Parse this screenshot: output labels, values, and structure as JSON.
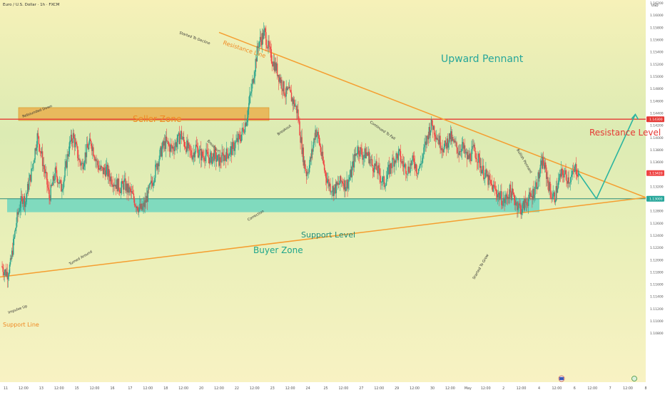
{
  "header": {
    "symbol_title": "Euro / U.S. Dollar · 1h · FXCM",
    "currency": "USD",
    "flag_icon": "eu-us-flag-icon"
  },
  "colors": {
    "bg_top": "#f7f0b7",
    "bg_bottom": "#f7f2c1",
    "bg_mid": "#dcecb6",
    "candle_up": "#2ca58d",
    "candle_down": "#ef4444",
    "trend_line": "#f59e30",
    "resistance_level": "#e53935",
    "seller_zone": "#e9b04d",
    "buyer_zone": "#6fd6bf",
    "pennant_text": "#26a69a",
    "projection": "#2cb5a0"
  },
  "chart_data": {
    "type": "candlestick",
    "title": "Upward Pennant",
    "price_axis": {
      "range": [
        1.1,
        1.1625
      ],
      "tick_labels": [
        "1.16200",
        "1.16000",
        "1.15800",
        "1.15600",
        "1.15400",
        "1.15200",
        "1.15000",
        "1.14800",
        "1.14600",
        "1.14400",
        "1.14200",
        "1.14000",
        "1.13800",
        "1.13600",
        "1.13400",
        "1.13200",
        "1.13000",
        "1.12800",
        "1.12600",
        "1.12400",
        "1.12200",
        "1.12000",
        "1.11800",
        "1.11600",
        "1.11400",
        "1.11200",
        "1.11000",
        "1.10800"
      ],
      "markers": [
        {
          "label": "1.14300",
          "value": 1.143,
          "color": "#e53935"
        },
        {
          "label": "1.13420",
          "value": 1.1342,
          "color": "#ef4444"
        },
        {
          "label": "1.13000",
          "value": 1.13,
          "color": "#26a69a"
        }
      ]
    },
    "time_axis": {
      "tick_labels": [
        "11",
        "12:00",
        "13",
        "12:00",
        "15",
        "12:00",
        "16",
        "17",
        "12:00",
        "18",
        "12:00",
        "20",
        "12:00",
        "22",
        "12:00",
        "23",
        "12:00",
        "24",
        "25",
        "12:00",
        "27",
        "12:00",
        "29",
        "12:00",
        "30",
        "12:00",
        "May",
        "12:00",
        "2",
        "12:00",
        "4",
        "12:00",
        "6",
        "12:00",
        "7",
        "12:00",
        "8"
      ]
    },
    "levels": {
      "resistance_level": {
        "label": "Resistance Level",
        "value": 1.143
      },
      "support_level": {
        "label": "Support Level",
        "value": 1.13
      },
      "seller_zone": {
        "label": "Seller Zone",
        "low": 1.1428,
        "high": 1.1449
      },
      "buyer_zone": {
        "label": "Buyer Zone",
        "low": 1.1278,
        "high": 1.13
      }
    },
    "trend_lines": {
      "resistance_line": {
        "label": "Resistance Line",
        "from": 1.1572,
        "to": 1.1302
      },
      "support_line": {
        "label": "Support Line",
        "from": 1.1172,
        "to": 1.1302
      }
    },
    "price_path": [
      [
        0,
        1.119
      ],
      [
        1,
        1.1182
      ],
      [
        2,
        1.1178
      ],
      [
        3,
        1.1192
      ],
      [
        4,
        1.1226
      ],
      [
        5,
        1.1262
      ],
      [
        6,
        1.1286
      ],
      [
        7,
        1.1302
      ],
      [
        8,
        1.1296
      ],
      [
        9,
        1.1322
      ],
      [
        10,
        1.1342
      ],
      [
        11,
        1.1372
      ],
      [
        12,
        1.1402
      ],
      [
        13,
        1.1382
      ],
      [
        14,
        1.1355
      ],
      [
        15,
        1.1332
      ],
      [
        16,
        1.1302
      ],
      [
        17,
        1.1322
      ],
      [
        18,
        1.1342
      ],
      [
        19,
        1.1332
      ],
      [
        20,
        1.1318
      ],
      [
        21,
        1.1335
      ],
      [
        22,
        1.1368
      ],
      [
        23,
        1.1392
      ],
      [
        24,
        1.1402
      ],
      [
        25,
        1.1382
      ],
      [
        26,
        1.1362
      ],
      [
        27,
        1.1355
      ],
      [
        28,
        1.1372
      ],
      [
        29,
        1.1385
      ],
      [
        30,
        1.1392
      ],
      [
        31,
        1.1375
      ],
      [
        32,
        1.1358
      ],
      [
        33,
        1.1348
      ],
      [
        34,
        1.1345
      ],
      [
        35,
        1.1348
      ],
      [
        36,
        1.1337
      ],
      [
        37,
        1.1332
      ],
      [
        38,
        1.1325
      ],
      [
        39,
        1.1322
      ],
      [
        40,
        1.1317
      ],
      [
        41,
        1.1325
      ],
      [
        42,
        1.1316
      ],
      [
        43,
        1.1312
      ],
      [
        44,
        1.1302
      ],
      [
        45,
        1.1292
      ],
      [
        46,
        1.1285
      ],
      [
        47,
        1.1282
      ],
      [
        48,
        1.1292
      ],
      [
        49,
        1.1308
      ],
      [
        50,
        1.1322
      ],
      [
        51,
        1.1338
      ],
      [
        52,
        1.1356
      ],
      [
        53,
        1.1372
      ],
      [
        54,
        1.1385
      ],
      [
        55,
        1.1392
      ],
      [
        56,
        1.1386
      ],
      [
        57,
        1.1382
      ],
      [
        58,
        1.1388
      ],
      [
        59,
        1.1395
      ],
      [
        60,
        1.1405
      ],
      [
        61,
        1.1392
      ],
      [
        62,
        1.1385
      ],
      [
        63,
        1.1376
      ],
      [
        64,
        1.1372
      ],
      [
        65,
        1.1385
      ],
      [
        66,
        1.1376
      ],
      [
        67,
        1.137
      ],
      [
        68,
        1.1372
      ],
      [
        69,
        1.1369
      ],
      [
        70,
        1.1365
      ],
      [
        71,
        1.1372
      ],
      [
        72,
        1.1364
      ],
      [
        73,
        1.1362
      ],
      [
        74,
        1.1368
      ],
      [
        75,
        1.1372
      ],
      [
        76,
        1.1376
      ],
      [
        77,
        1.138
      ],
      [
        78,
        1.1388
      ],
      [
        79,
        1.1395
      ],
      [
        80,
        1.1402
      ],
      [
        81,
        1.1415
      ],
      [
        82,
        1.1432
      ],
      [
        83,
        1.1462
      ],
      [
        84,
        1.149
      ],
      [
        85,
        1.1525
      ],
      [
        86,
        1.1555
      ],
      [
        87,
        1.1562
      ],
      [
        88,
        1.1572
      ],
      [
        89,
        1.1552
      ],
      [
        90,
        1.1535
      ],
      [
        91,
        1.1522
      ],
      [
        92,
        1.1512
      ],
      [
        93,
        1.1498
      ],
      [
        94,
        1.1485
      ],
      [
        95,
        1.1472
      ],
      [
        96,
        1.1475
      ],
      [
        97,
        1.1465
      ],
      [
        98,
        1.1455
      ],
      [
        99,
        1.1442
      ],
      [
        100,
        1.1402
      ],
      [
        101,
        1.1365
      ],
      [
        102,
        1.1342
      ],
      [
        103,
        1.1355
      ],
      [
        104,
        1.138
      ],
      [
        105,
        1.1412
      ],
      [
        106,
        1.14
      ],
      [
        107,
        1.1372
      ],
      [
        108,
        1.1348
      ],
      [
        109,
        1.133
      ],
      [
        110,
        1.132
      ],
      [
        111,
        1.1315
      ],
      [
        112,
        1.1318
      ],
      [
        113,
        1.1325
      ],
      [
        114,
        1.133
      ],
      [
        115,
        1.1322
      ],
      [
        116,
        1.1328
      ],
      [
        117,
        1.1342
      ],
      [
        118,
        1.1365
      ],
      [
        119,
        1.1382
      ],
      [
        120,
        1.1378
      ],
      [
        121,
        1.137
      ],
      [
        122,
        1.1375
      ],
      [
        123,
        1.1368
      ],
      [
        124,
        1.1355
      ],
      [
        125,
        1.1352
      ],
      [
        126,
        1.1345
      ],
      [
        127,
        1.1332
      ],
      [
        128,
        1.1325
      ],
      [
        129,
        1.1338
      ],
      [
        130,
        1.1352
      ],
      [
        131,
        1.1362
      ],
      [
        132,
        1.1368
      ],
      [
        133,
        1.1372
      ],
      [
        134,
        1.1358
      ],
      [
        135,
        1.1352
      ],
      [
        136,
        1.1348
      ],
      [
        137,
        1.1358
      ],
      [
        138,
        1.1362
      ],
      [
        139,
        1.1348
      ],
      [
        140,
        1.1352
      ],
      [
        141,
        1.1372
      ],
      [
        142,
        1.1392
      ],
      [
        143,
        1.1412
      ],
      [
        144,
        1.1422
      ],
      [
        145,
        1.141
      ],
      [
        146,
        1.1398
      ],
      [
        147,
        1.139
      ],
      [
        148,
        1.1382
      ],
      [
        149,
        1.1392
      ],
      [
        150,
        1.1402
      ],
      [
        151,
        1.1392
      ],
      [
        152,
        1.1385
      ],
      [
        153,
        1.1378
      ],
      [
        154,
        1.1388
      ],
      [
        155,
        1.1374
      ],
      [
        156,
        1.1365
      ],
      [
        157,
        1.1372
      ],
      [
        158,
        1.138
      ],
      [
        159,
        1.137
      ],
      [
        160,
        1.1358
      ],
      [
        161,
        1.1345
      ],
      [
        162,
        1.1338
      ],
      [
        163,
        1.1328
      ],
      [
        164,
        1.132
      ],
      [
        165,
        1.1315
      ],
      [
        166,
        1.1308
      ],
      [
        167,
        1.1302
      ],
      [
        168,
        1.1295
      ],
      [
        169,
        1.1302
      ],
      [
        170,
        1.1312
      ],
      [
        171,
        1.1305
      ],
      [
        172,
        1.1295
      ],
      [
        173,
        1.1288
      ],
      [
        174,
        1.1282
      ],
      [
        175,
        1.1292
      ],
      [
        176,
        1.1298
      ],
      [
        177,
        1.1302
      ],
      [
        178,
        1.1312
      ],
      [
        179,
        1.1325
      ],
      [
        180,
        1.1342
      ],
      [
        181,
        1.1362
      ],
      [
        182,
        1.1345
      ],
      [
        183,
        1.1322
      ],
      [
        184,
        1.1305
      ],
      [
        185,
        1.1302
      ],
      [
        186,
        1.1322
      ],
      [
        187,
        1.1338
      ],
      [
        188,
        1.1342
      ],
      [
        189,
        1.1335
      ],
      [
        190,
        1.1332
      ],
      [
        191,
        1.1338
      ],
      [
        192,
        1.135
      ],
      [
        193,
        1.1342
      ]
    ],
    "projection": [
      {
        "x": 193,
        "price": 1.1342
      },
      {
        "x": 199,
        "price": 1.13
      },
      {
        "x": 212,
        "price": 1.1438
      }
    ]
  },
  "labels": {
    "pennant": "Upward Pennant",
    "seller_zone": "Seller Zone",
    "buyer_zone": "Buyer Zone",
    "support_level": "Support Level",
    "resistance_level": "Resistance Level",
    "resistance_line": "Resistance Line",
    "support_line": "Support Line"
  },
  "annotations": [
    {
      "text": "Impulse Up",
      "name": "ann-impulse-up"
    },
    {
      "text": "Rebounded Down",
      "name": "ann-rebounded-down"
    },
    {
      "text": "Turned Around",
      "name": "ann-turned-around"
    },
    {
      "text": "Started To Decline",
      "name": "ann-started-to-decline"
    },
    {
      "text": "Breakout",
      "name": "ann-breakout-1"
    },
    {
      "text": "Breakout",
      "name": "ann-breakout-2"
    },
    {
      "text": "Correction",
      "name": "ann-correction"
    },
    {
      "text": "Continued To Fall",
      "name": "ann-continued-to-fall"
    },
    {
      "text": "Bullish Pennant",
      "name": "ann-bullish-pennant"
    },
    {
      "text": "Started To Grow",
      "name": "ann-started-to-grow"
    }
  ]
}
